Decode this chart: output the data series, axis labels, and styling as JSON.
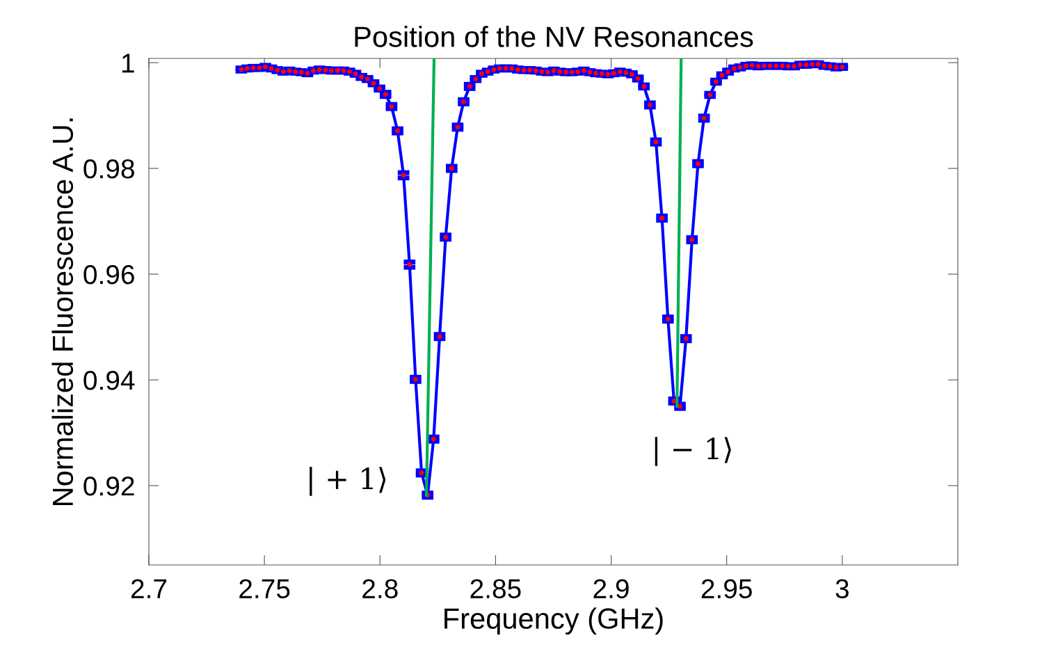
{
  "chart_data": {
    "type": "line",
    "title": "Position of the NV Resonances",
    "xlabel": "Frequency (GHz)",
    "ylabel": "Normalized Fluorescence A.U.",
    "xlim": [
      2.7,
      3.05
    ],
    "xticks": [
      2.7,
      2.75,
      2.8,
      2.85,
      2.9,
      2.95,
      3
    ],
    "ylim": [
      0.905,
      1.0008
    ],
    "yticks": [
      0.92,
      0.94,
      0.96,
      0.98,
      1
    ],
    "grid": false,
    "legend": false,
    "marker": "circle",
    "line_style": "solid",
    "series": [
      {
        "color": "#0000ff",
        "x": [
          2.74,
          2.7426,
          2.7452,
          2.7478,
          2.7504,
          2.753,
          2.7556,
          2.7582,
          2.7608,
          2.7634,
          2.766,
          2.7686,
          2.7712,
          2.7738,
          2.7764,
          2.779,
          2.7816,
          2.7842,
          2.7868,
          2.7894,
          2.792,
          2.7946,
          2.7972,
          2.7998,
          2.8024,
          2.805,
          2.8076,
          2.8102,
          2.8128,
          2.8154,
          2.818,
          2.8206,
          2.8232,
          2.8258,
          2.8284,
          2.831,
          2.8336,
          2.8362,
          2.8388,
          2.8414,
          2.844,
          2.8466,
          2.8492,
          2.8518,
          2.8544,
          2.857,
          2.8596,
          2.8622,
          2.8648,
          2.8674,
          2.87,
          2.8726,
          2.8752,
          2.8778,
          2.8804,
          2.883,
          2.8856,
          2.8882,
          2.8908,
          2.8934,
          2.896,
          2.8986,
          2.9012,
          2.9038,
          2.9064,
          2.909,
          2.9116,
          2.9142,
          2.9168,
          2.9194,
          2.922,
          2.9246,
          2.9272,
          2.9298,
          2.9324,
          2.935,
          2.9376,
          2.9402,
          2.9428,
          2.9454,
          2.948,
          2.9506,
          2.9532,
          2.9558,
          2.9584,
          2.961,
          2.9636,
          2.9662,
          2.9688,
          2.9714,
          2.974,
          2.9766,
          2.9792,
          2.9818,
          2.9844,
          2.987,
          2.9896,
          2.9922,
          2.9948,
          2.9974,
          3.0
        ],
        "values": [
          0.9987,
          0.9989,
          0.999,
          0.999,
          0.9992,
          0.9989,
          0.9986,
          0.9983,
          0.9985,
          0.9983,
          0.9982,
          0.998,
          0.9985,
          0.9987,
          0.9986,
          0.9985,
          0.9985,
          0.9985,
          0.9983,
          0.9979,
          0.9973,
          0.9969,
          0.9961,
          0.9951,
          0.994,
          0.9917,
          0.9871,
          0.9787,
          0.9618,
          0.9401,
          0.9224,
          0.9182,
          0.9288,
          0.9482,
          0.967,
          0.98,
          0.9878,
          0.9926,
          0.9955,
          0.9969,
          0.9979,
          0.9983,
          0.9987,
          0.9989,
          0.9989,
          0.9989,
          0.9987,
          0.9986,
          0.9986,
          0.9985,
          0.9983,
          0.9982,
          0.9985,
          0.9983,
          0.9982,
          0.9982,
          0.9983,
          0.9985,
          0.9982,
          0.998,
          0.9979,
          0.9978,
          0.998,
          0.9983,
          0.9981,
          0.9978,
          0.997,
          0.9955,
          0.992,
          0.985,
          0.9706,
          0.9515,
          0.936,
          0.935,
          0.9478,
          0.9665,
          0.9809,
          0.9895,
          0.9939,
          0.9964,
          0.9976,
          0.9983,
          0.9989,
          0.9991,
          0.9994,
          0.9995,
          0.9993,
          0.9994,
          0.9994,
          0.9994,
          0.9994,
          0.9993,
          0.9993,
          0.9996,
          0.9996,
          0.9997,
          0.9997,
          0.9994,
          0.9993,
          0.9991,
          0.9992
        ],
        "errors": [
          0.0003,
          0.0003,
          0.0003,
          0.0003,
          0.0003,
          0.0003,
          0.0003,
          0.0003,
          0.0003,
          0.0003,
          0.0003,
          0.0003,
          0.0003,
          0.0003,
          0.0003,
          0.0003,
          0.0003,
          0.0003,
          0.0003,
          0.0003,
          0.0003,
          0.0003,
          0.0003,
          0.0003,
          0.0004,
          0.0004,
          0.0004,
          0.0005,
          0.0005,
          0.0004,
          0.0004,
          0.0004,
          0.0004,
          0.0004,
          0.0004,
          0.0004,
          0.0004,
          0.0004,
          0.0004,
          0.0003,
          0.0003,
          0.0003,
          0.0003,
          0.0003,
          0.0003,
          0.0003,
          0.0003,
          0.0003,
          0.0003,
          0.0003,
          0.0003,
          0.0003,
          0.0003,
          0.0003,
          0.0003,
          0.0003,
          0.0003,
          0.0003,
          0.0003,
          0.0003,
          0.0003,
          0.0003,
          0.0003,
          0.0003,
          0.0003,
          0.0003,
          0.0003,
          0.0003,
          0.0004,
          0.0004,
          0.0004,
          0.0004,
          0.0004,
          0.0004,
          0.0004,
          0.0004,
          0.0004,
          0.0004,
          0.0003,
          0.0003,
          0.0003,
          0.0003,
          0.0003,
          0.0003,
          0.0003,
          0.0003,
          0.0003,
          0.0003,
          0.0003,
          0.0003,
          0.0003,
          0.0003,
          0.0003,
          0.0003,
          0.0003,
          0.0003,
          0.0003,
          0.0003,
          0.0003,
          0.0003,
          0.0003
        ]
      },
      {
        "color": "#00b050",
        "marker": "none",
        "x": [
          2.8234,
          2.8201
        ],
        "values": [
          1.0008,
          0.9182
        ]
      },
      {
        "color": "#00b050",
        "marker": "none",
        "x": [
          2.9303,
          2.9285
        ],
        "values": [
          1.0008,
          0.935
        ]
      }
    ],
    "annotations": [
      "| + 1⟩",
      "| − 1⟩"
    ]
  }
}
